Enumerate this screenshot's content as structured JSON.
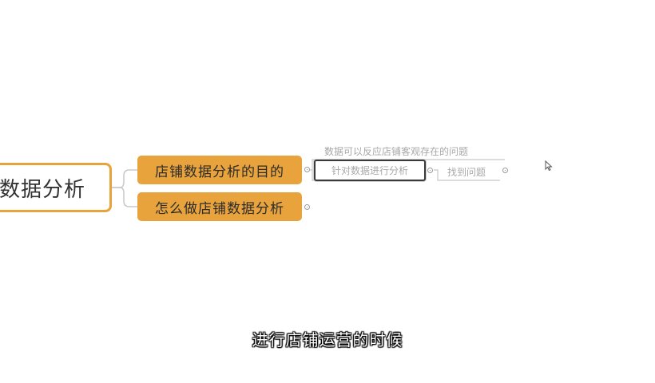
{
  "mindmap": {
    "root": {
      "label": "数据分析"
    },
    "branches": [
      {
        "label": "店铺数据分析的目的",
        "children": [
          {
            "label": "数据可以反应店铺客观存在的问题"
          },
          {
            "label": "针对数据进行分析",
            "selected": true,
            "children": [
              {
                "label": "找到问题"
              }
            ]
          }
        ]
      },
      {
        "label": "怎么做店铺数据分析",
        "collapsed": true
      }
    ]
  },
  "caption": {
    "text": "进行店铺运营的时候"
  },
  "colors": {
    "branch_fill": "#e8a33d",
    "root_border": "#e8a33d",
    "connector": "#c8c8c8",
    "sub_text": "#a8a8a8"
  },
  "icons": {
    "collapse_toggle": "circle-dot-icon",
    "cursor": "mouse-pointer-icon"
  }
}
